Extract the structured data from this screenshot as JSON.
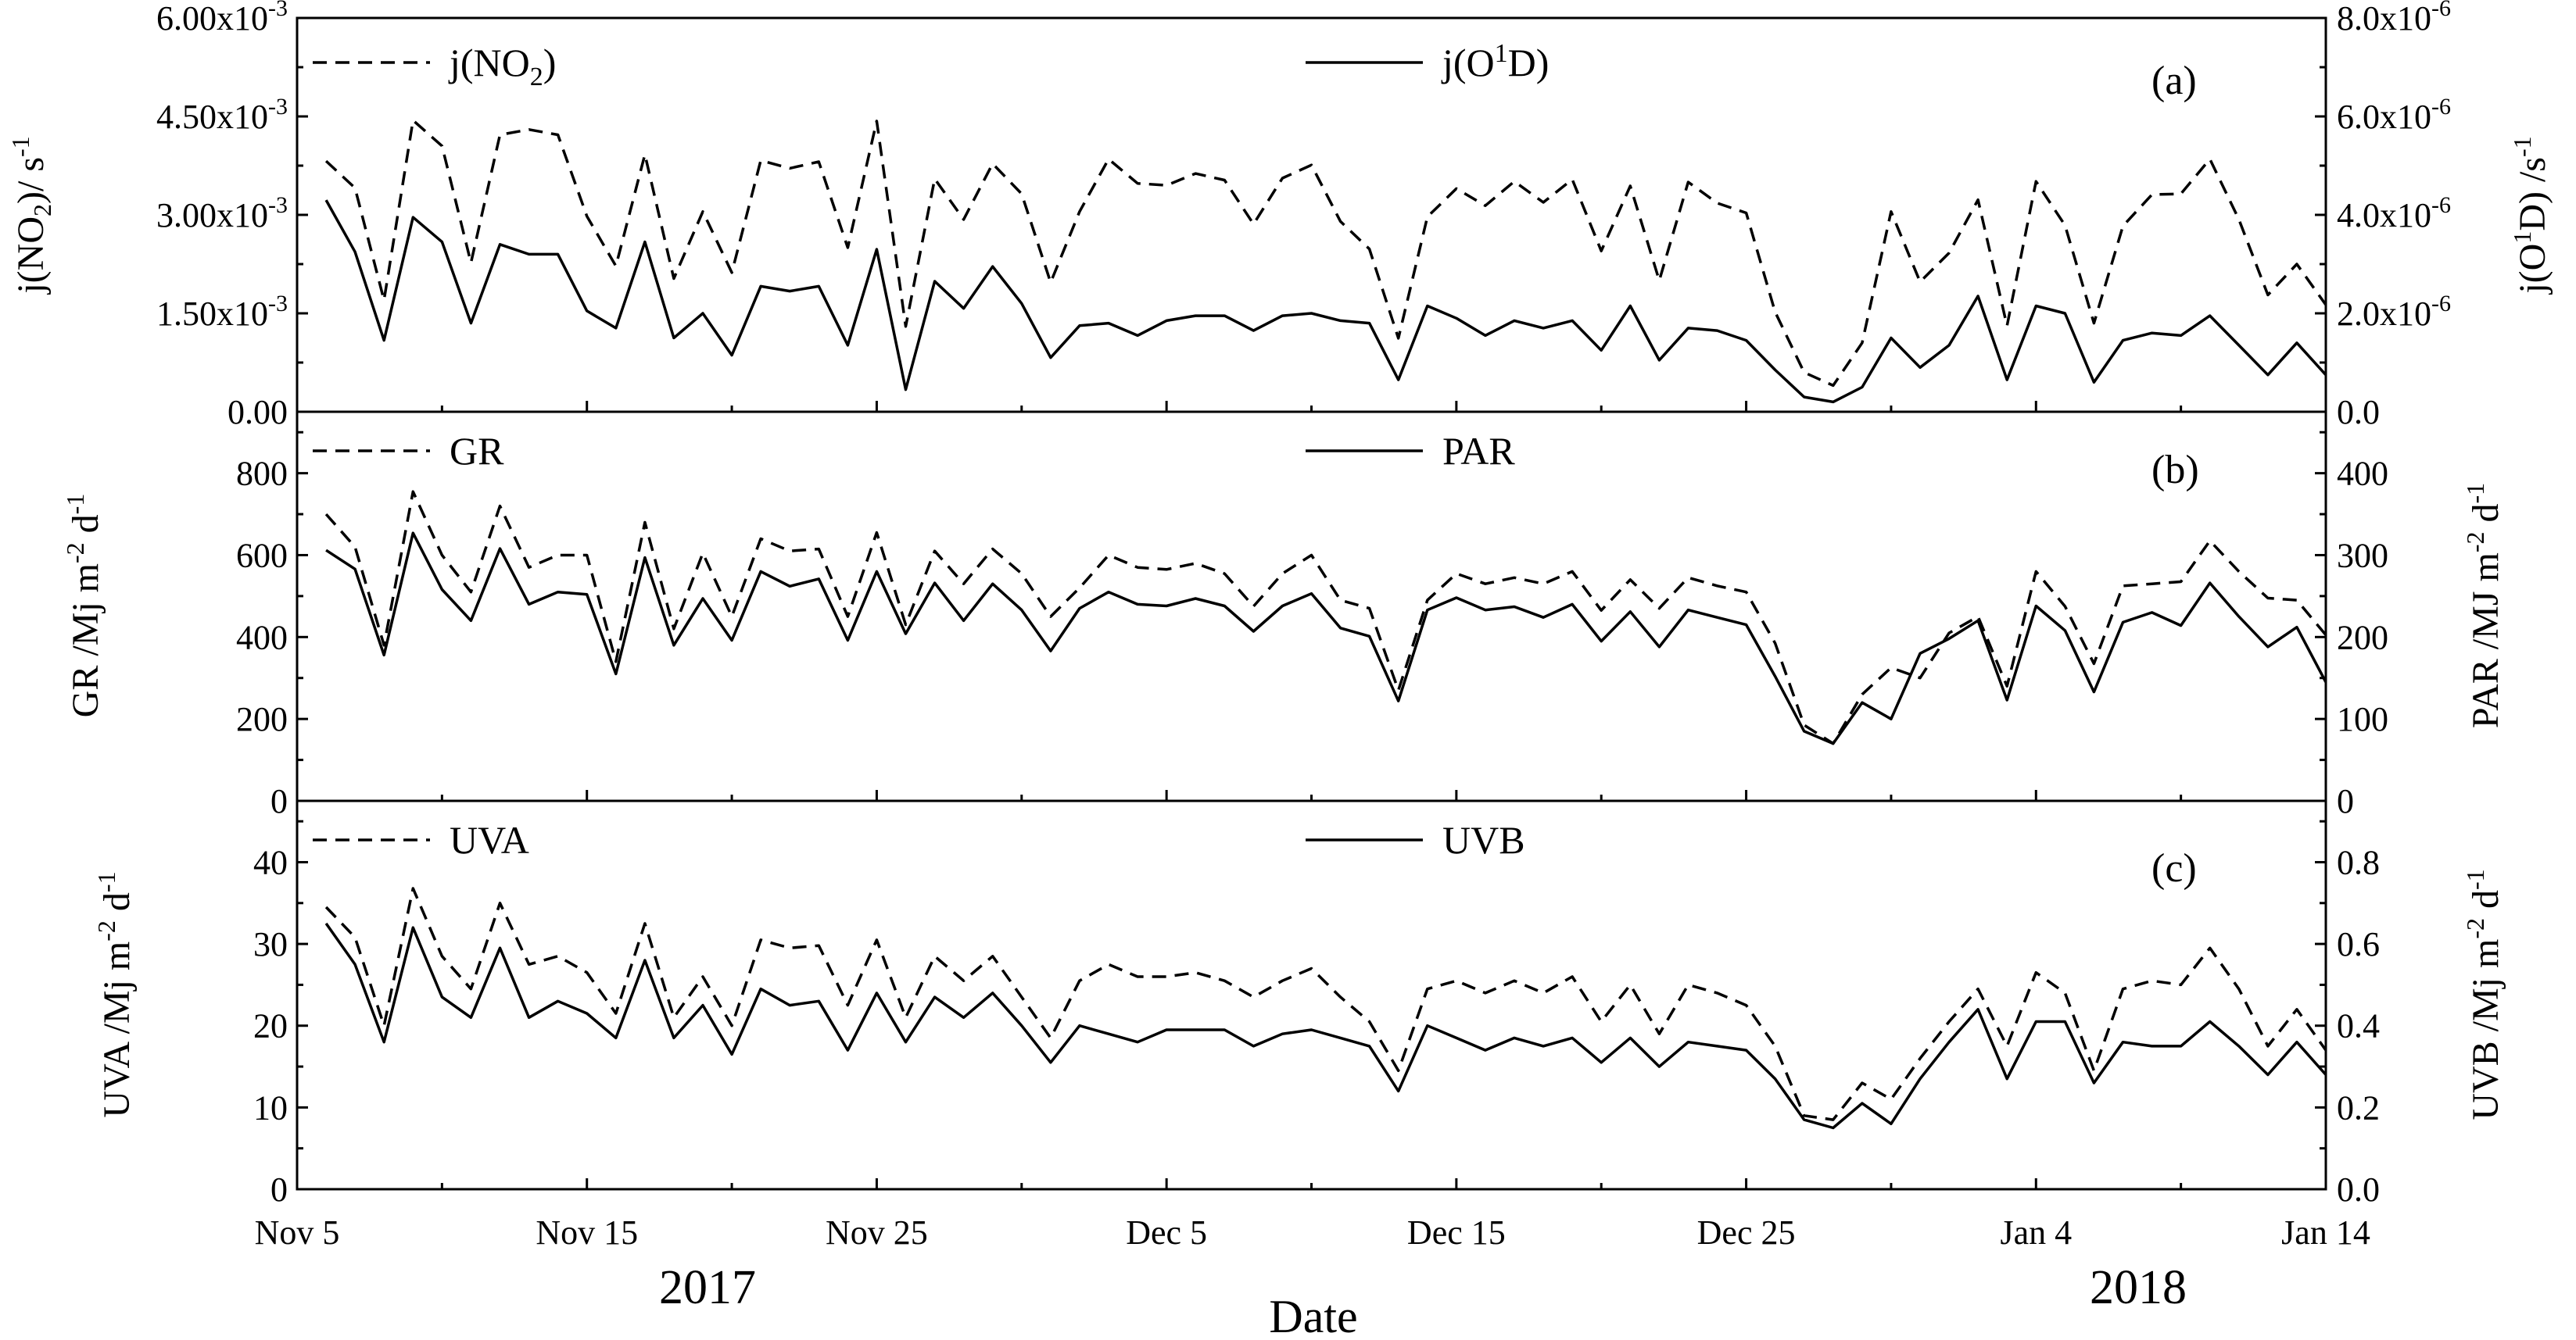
{
  "chart_data": {
    "type": "line",
    "x_dates": [
      "Nov 6",
      "Nov 7",
      "Nov 8",
      "Nov 9",
      "Nov 10",
      "Nov 11",
      "Nov 12",
      "Nov 13",
      "Nov 14",
      "Nov 15",
      "Nov 16",
      "Nov 17",
      "Nov 18",
      "Nov 19",
      "Nov 20",
      "Nov 21",
      "Nov 22",
      "Nov 23",
      "Nov 24",
      "Nov 25",
      "Nov 26",
      "Nov 27",
      "Nov 28",
      "Nov 29",
      "Nov 30",
      "Dec 1",
      "Dec 2",
      "Dec 3",
      "Dec 4",
      "Dec 5",
      "Dec 6",
      "Dec 7",
      "Dec 8",
      "Dec 9",
      "Dec 10",
      "Dec 11",
      "Dec 12",
      "Dec 13",
      "Dec 14",
      "Dec 15",
      "Dec 16",
      "Dec 17",
      "Dec 18",
      "Dec 19",
      "Dec 20",
      "Dec 21",
      "Dec 22",
      "Dec 23",
      "Dec 24",
      "Dec 25",
      "Dec 26",
      "Dec 27",
      "Dec 28",
      "Dec 29",
      "Dec 30",
      "Dec 31",
      "Jan 1",
      "Jan 2",
      "Jan 3",
      "Jan 4",
      "Jan 5",
      "Jan 6",
      "Jan 7",
      "Jan 8",
      "Jan 9",
      "Jan 10",
      "Jan 11",
      "Jan 12",
      "Jan 13",
      "Jan 14"
    ],
    "x_tick_labels": [
      "Nov 5",
      "Nov 15",
      "Nov 25",
      "Dec 5",
      "Dec 15",
      "Dec 25",
      "Jan 4",
      "Jan 14"
    ],
    "year_labels": [
      "2017",
      "2018"
    ],
    "xlabel": "Date",
    "panels": [
      {
        "label": "(a)",
        "left_ylabel": "j(NO2)/ s-1",
        "right_ylabel": "j(O1D) /s-1",
        "left_ylim": [
          0,
          0.006
        ],
        "right_ylim": [
          0,
          8e-06
        ],
        "left_ticks": [
          "0.00",
          "1.50x10-3",
          "3.00x10-3",
          "4.50x10-3",
          "6.00x10-3"
        ],
        "right_ticks": [
          "0.0",
          "2.0x10-6",
          "4.0x10-6",
          "6.0x10-6",
          "8.0x10-6"
        ],
        "series": [
          {
            "name": "j(NO2)",
            "axis": "left",
            "style": "dashed",
            "values": [
              0.00382,
              0.00341,
              0.0017,
              0.00444,
              0.00405,
              0.00227,
              0.00422,
              0.0043,
              0.00422,
              0.00298,
              0.00222,
              0.00392,
              0.00203,
              0.00305,
              0.00212,
              0.00383,
              0.00371,
              0.00381,
              0.0025,
              0.00443,
              0.0013,
              0.00355,
              0.00293,
              0.00378,
              0.00332,
              0.00197,
              0.00305,
              0.00385,
              0.00348,
              0.00345,
              0.00363,
              0.00353,
              0.00286,
              0.00356,
              0.00376,
              0.0029,
              0.00248,
              0.00112,
              0.00297,
              0.0034,
              0.00314,
              0.00351,
              0.00319,
              0.00354,
              0.00245,
              0.00344,
              0.002,
              0.0035,
              0.00318,
              0.00303,
              0.00152,
              0.0006,
              0.0004,
              0.00105,
              0.00305,
              0.00198,
              0.00242,
              0.00323,
              0.00131,
              0.00351,
              0.00284,
              0.00135,
              0.00283,
              0.00331,
              0.00332,
              0.00385,
              0.00293,
              0.00178,
              0.00225,
              0.00163
            ]
          },
          {
            "name": "j(O1D)",
            "axis": "right",
            "style": "solid",
            "values": [
              4.3e-06,
              3.25e-06,
              1.45e-06,
              3.95e-06,
              3.45e-06,
              1.8e-06,
              3.4e-06,
              3.2e-06,
              3.2e-06,
              2.05e-06,
              1.7e-06,
              3.45e-06,
              1.5e-06,
              2e-06,
              1.15e-06,
              2.55e-06,
              2.45e-06,
              2.55e-06,
              1.35e-06,
              3.3e-06,
              4.5e-07,
              2.65e-06,
              2.1e-06,
              2.95e-06,
              2.2e-06,
              1.1e-06,
              1.75e-06,
              1.8e-06,
              1.55e-06,
              1.85e-06,
              1.95e-06,
              1.95e-06,
              1.65e-06,
              1.95e-06,
              2e-06,
              1.85e-06,
              1.8e-06,
              6.5e-07,
              2.15e-06,
              1.9e-06,
              1.55e-06,
              1.85e-06,
              1.7e-06,
              1.85e-06,
              1.25e-06,
              2.15e-06,
              1.05e-06,
              1.7e-06,
              1.65e-06,
              1.45e-06,
              8.5e-07,
              3e-07,
              2e-07,
              5e-07,
              1.5e-06,
              9e-07,
              1.35e-06,
              2.35e-06,
              6.5e-07,
              2.15e-06,
              2e-06,
              6e-07,
              1.45e-06,
              1.6e-06,
              1.55e-06,
              1.95e-06,
              1.35e-06,
              7.5e-07,
              1.4e-06,
              7.5e-07
            ]
          }
        ]
      },
      {
        "label": "(b)",
        "left_ylabel": "GR /Mj m-2 d-1",
        "right_ylabel": "PAR /MJ m-2 d-1",
        "left_ylim": [
          0,
          950
        ],
        "right_ylim": [
          0,
          475
        ],
        "left_ticks": [
          "0",
          "200",
          "400",
          "600",
          "800"
        ],
        "right_ticks": [
          "0",
          "100",
          "200",
          "300",
          "400"
        ],
        "series": [
          {
            "name": "GR",
            "axis": "left",
            "style": "dashed",
            "values": [
              700,
              620,
              380,
              755,
              600,
              510,
              720,
              570,
              600,
              600,
              340,
              680,
              420,
              605,
              450,
              640,
              610,
              615,
              450,
              655,
              430,
              610,
              530,
              615,
              555,
              450,
              520,
              600,
              570,
              565,
              580,
              555,
              475,
              555,
              600,
              490,
              470,
              270,
              490,
              555,
              530,
              545,
              530,
              560,
              465,
              540,
              470,
              545,
              525,
              510,
              385,
              185,
              140,
              260,
              325,
              300,
              410,
              450,
              280,
              560,
              475,
              335,
              525,
              530,
              535,
              635,
              560,
              495,
              490,
              405
            ]
          },
          {
            "name": "PAR",
            "axis": "right",
            "style": "solid",
            "values": [
              306,
              283,
              178,
              327,
              258,
              220,
              308,
              240,
              255,
              252,
              155,
              297,
              190,
              247,
              196,
              280,
              262,
              271,
              196,
              280,
              204,
              266,
              220,
              265,
              233,
              183,
              235,
              255,
              240,
              238,
              247,
              238,
              207,
              238,
              253,
              211,
              201,
              122,
              233,
              248,
              233,
              237,
              224,
              240,
              195,
              231,
              188,
              233,
              224,
              215,
              152,
              85,
              70,
              120,
              100,
              180,
              198,
              220,
              123,
              238,
              208,
              133,
              218,
              230,
              214,
              266,
              225,
              188,
              212,
              145
            ]
          }
        ]
      },
      {
        "label": "(c)",
        "left_ylabel": "UVA /Mj m-2 d-1",
        "right_ylabel": "UVB /Mj m-2 d-1",
        "left_ylim": [
          0,
          47.5
        ],
        "right_ylim": [
          0,
          0.95
        ],
        "left_ticks": [
          "0",
          "10",
          "20",
          "30",
          "40"
        ],
        "right_ticks": [
          "0.0",
          "0.2",
          "0.4",
          "0.6",
          "0.8"
        ],
        "series": [
          {
            "name": "UVA",
            "axis": "left",
            "style": "dashed",
            "values": [
              34.5,
              30.8,
              20.0,
              36.8,
              28.5,
              24.5,
              35.0,
              27.5,
              28.5,
              26.5,
              21.5,
              32.5,
              21.0,
              26.0,
              20.0,
              30.5,
              29.5,
              29.8,
              22.5,
              30.5,
              21.0,
              28.5,
              25.5,
              28.5,
              23.5,
              18.5,
              25.5,
              27.5,
              26.0,
              26.0,
              26.5,
              25.5,
              23.5,
              25.5,
              27.0,
              23.5,
              20.5,
              14.5,
              24.5,
              25.5,
              24.0,
              25.5,
              24.0,
              26.0,
              20.5,
              25.0,
              19.0,
              25.0,
              24.0,
              22.5,
              17.5,
              9.0,
              8.5,
              13.0,
              11.0,
              16.0,
              20.5,
              24.5,
              17.5,
              26.5,
              24.0,
              14.5,
              24.5,
              25.5,
              25.0,
              29.5,
              24.5,
              17.5,
              22.0,
              17.0
            ]
          },
          {
            "name": "UVB",
            "axis": "right",
            "style": "solid",
            "values": [
              0.65,
              0.55,
              0.36,
              0.64,
              0.47,
              0.42,
              0.59,
              0.42,
              0.46,
              0.43,
              0.37,
              0.56,
              0.37,
              0.45,
              0.33,
              0.49,
              0.45,
              0.46,
              0.34,
              0.48,
              0.36,
              0.47,
              0.42,
              0.48,
              0.4,
              0.31,
              0.4,
              0.38,
              0.36,
              0.39,
              0.39,
              0.39,
              0.35,
              0.38,
              0.39,
              0.37,
              0.35,
              0.24,
              0.4,
              0.37,
              0.34,
              0.37,
              0.35,
              0.37,
              0.31,
              0.37,
              0.3,
              0.36,
              0.35,
              0.34,
              0.27,
              0.17,
              0.15,
              0.21,
              0.16,
              0.27,
              0.36,
              0.44,
              0.27,
              0.41,
              0.41,
              0.26,
              0.36,
              0.35,
              0.35,
              0.41,
              0.35,
              0.28,
              0.36,
              0.28
            ]
          }
        ]
      }
    ]
  }
}
